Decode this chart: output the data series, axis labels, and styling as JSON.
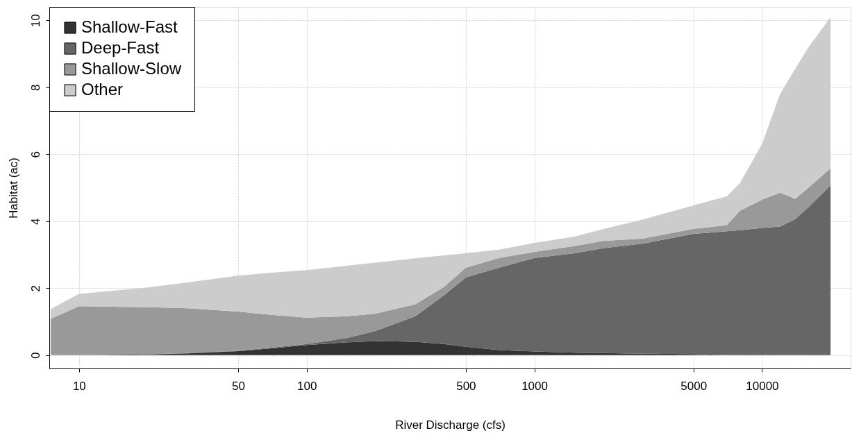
{
  "chart_data": {
    "type": "area",
    "stacked": true,
    "xlabel": "River Discharge (cfs)",
    "ylabel": "Habitat (ac)",
    "log": "x",
    "grid": true,
    "legend": "top left",
    "x": [
      7.5,
      10,
      20,
      30,
      50,
      70,
      100,
      150,
      200,
      300,
      400,
      500,
      700,
      1000,
      1500,
      2000,
      3000,
      5000,
      7000,
      8000,
      10000,
      12000,
      14000,
      16000,
      20000
    ],
    "xlim": [
      7.4,
      24500
    ],
    "xticks": [
      10,
      50,
      100,
      500,
      1000,
      5000,
      10000
    ],
    "ylim": [
      -0.4,
      10.4
    ],
    "yticks": [
      0,
      2,
      4,
      6,
      8,
      10
    ],
    "series": [
      {
        "name": "Shallow-Fast",
        "color": "#333333",
        "values": [
          0,
          0,
          0.02,
          0.05,
          0.12,
          0.2,
          0.3,
          0.38,
          0.42,
          0.4,
          0.33,
          0.25,
          0.15,
          0.11,
          0.07,
          0.06,
          0.04,
          0.03,
          0,
          0,
          0,
          0,
          0,
          0,
          0
        ]
      },
      {
        "name": "Deep-Fast",
        "color": "#666666",
        "values": [
          0,
          0,
          0,
          0.01,
          0.01,
          0.02,
          0.03,
          0.13,
          0.3,
          0.76,
          1.45,
          2.07,
          2.46,
          2.79,
          2.97,
          3.13,
          3.29,
          3.59,
          3.7,
          3.73,
          3.8,
          3.84,
          4.06,
          4.42,
          5.07
        ]
      },
      {
        "name": "Shallow-Slow",
        "color": "#999999",
        "values": [
          1.08,
          1.46,
          1.41,
          1.34,
          1.17,
          0.98,
          0.79,
          0.65,
          0.52,
          0.36,
          0.25,
          0.29,
          0.29,
          0.18,
          0.22,
          0.22,
          0.15,
          0.15,
          0.18,
          0.58,
          0.84,
          1.01,
          0.61,
          0.58,
          0.51
        ]
      },
      {
        "name": "Other",
        "color": "#cccccc",
        "values": [
          0.29,
          0.37,
          0.59,
          0.77,
          1.07,
          1.26,
          1.42,
          1.51,
          1.52,
          1.37,
          0.95,
          0.43,
          0.25,
          0.27,
          0.28,
          0.35,
          0.57,
          0.7,
          0.86,
          0.83,
          1.66,
          2.95,
          3.88,
          4.2,
          4.51
        ]
      }
    ]
  }
}
